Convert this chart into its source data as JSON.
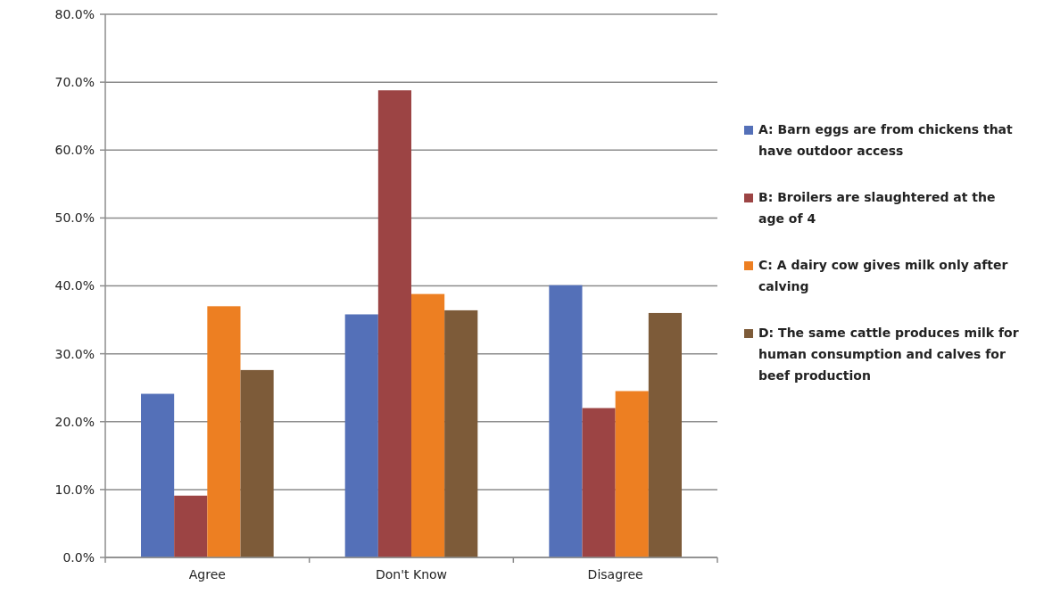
{
  "chart_data": {
    "type": "bar",
    "categories": [
      "Agree",
      "Don't Know",
      "Disagree"
    ],
    "series": [
      {
        "name": "A: Barn eggs are from chickens that have outdoor access",
        "color": "#5470b8",
        "values": [
          24.1,
          35.8,
          40.1
        ]
      },
      {
        "name": "B: Broilers are slaughtered at the age of 4",
        "color": "#9c4444",
        "values": [
          9.1,
          68.8,
          22.0
        ]
      },
      {
        "name": "C: A dairy cow gives milk only after calving",
        "color": "#ed7f22",
        "values": [
          37.0,
          38.8,
          24.5
        ]
      },
      {
        "name": "D: The same cattle produces milk for human consumption and calves for beef production",
        "color": "#7d5b39",
        "values": [
          27.6,
          36.4,
          36.0
        ]
      }
    ],
    "ylim": [
      0,
      80
    ],
    "yticks": [
      {
        "value": 0,
        "label": "0.0%"
      },
      {
        "value": 10,
        "label": "10.0%"
      },
      {
        "value": 20,
        "label": "20.0%"
      },
      {
        "value": 30,
        "label": "30.0%"
      },
      {
        "value": 40,
        "label": "40.0%"
      },
      {
        "value": 50,
        "label": "50.0%"
      },
      {
        "value": 60,
        "label": "60.0%"
      },
      {
        "value": 70,
        "label": "70.0%"
      },
      {
        "value": 80,
        "label": "80.0%"
      }
    ],
    "grid": "y",
    "legend": "right"
  }
}
